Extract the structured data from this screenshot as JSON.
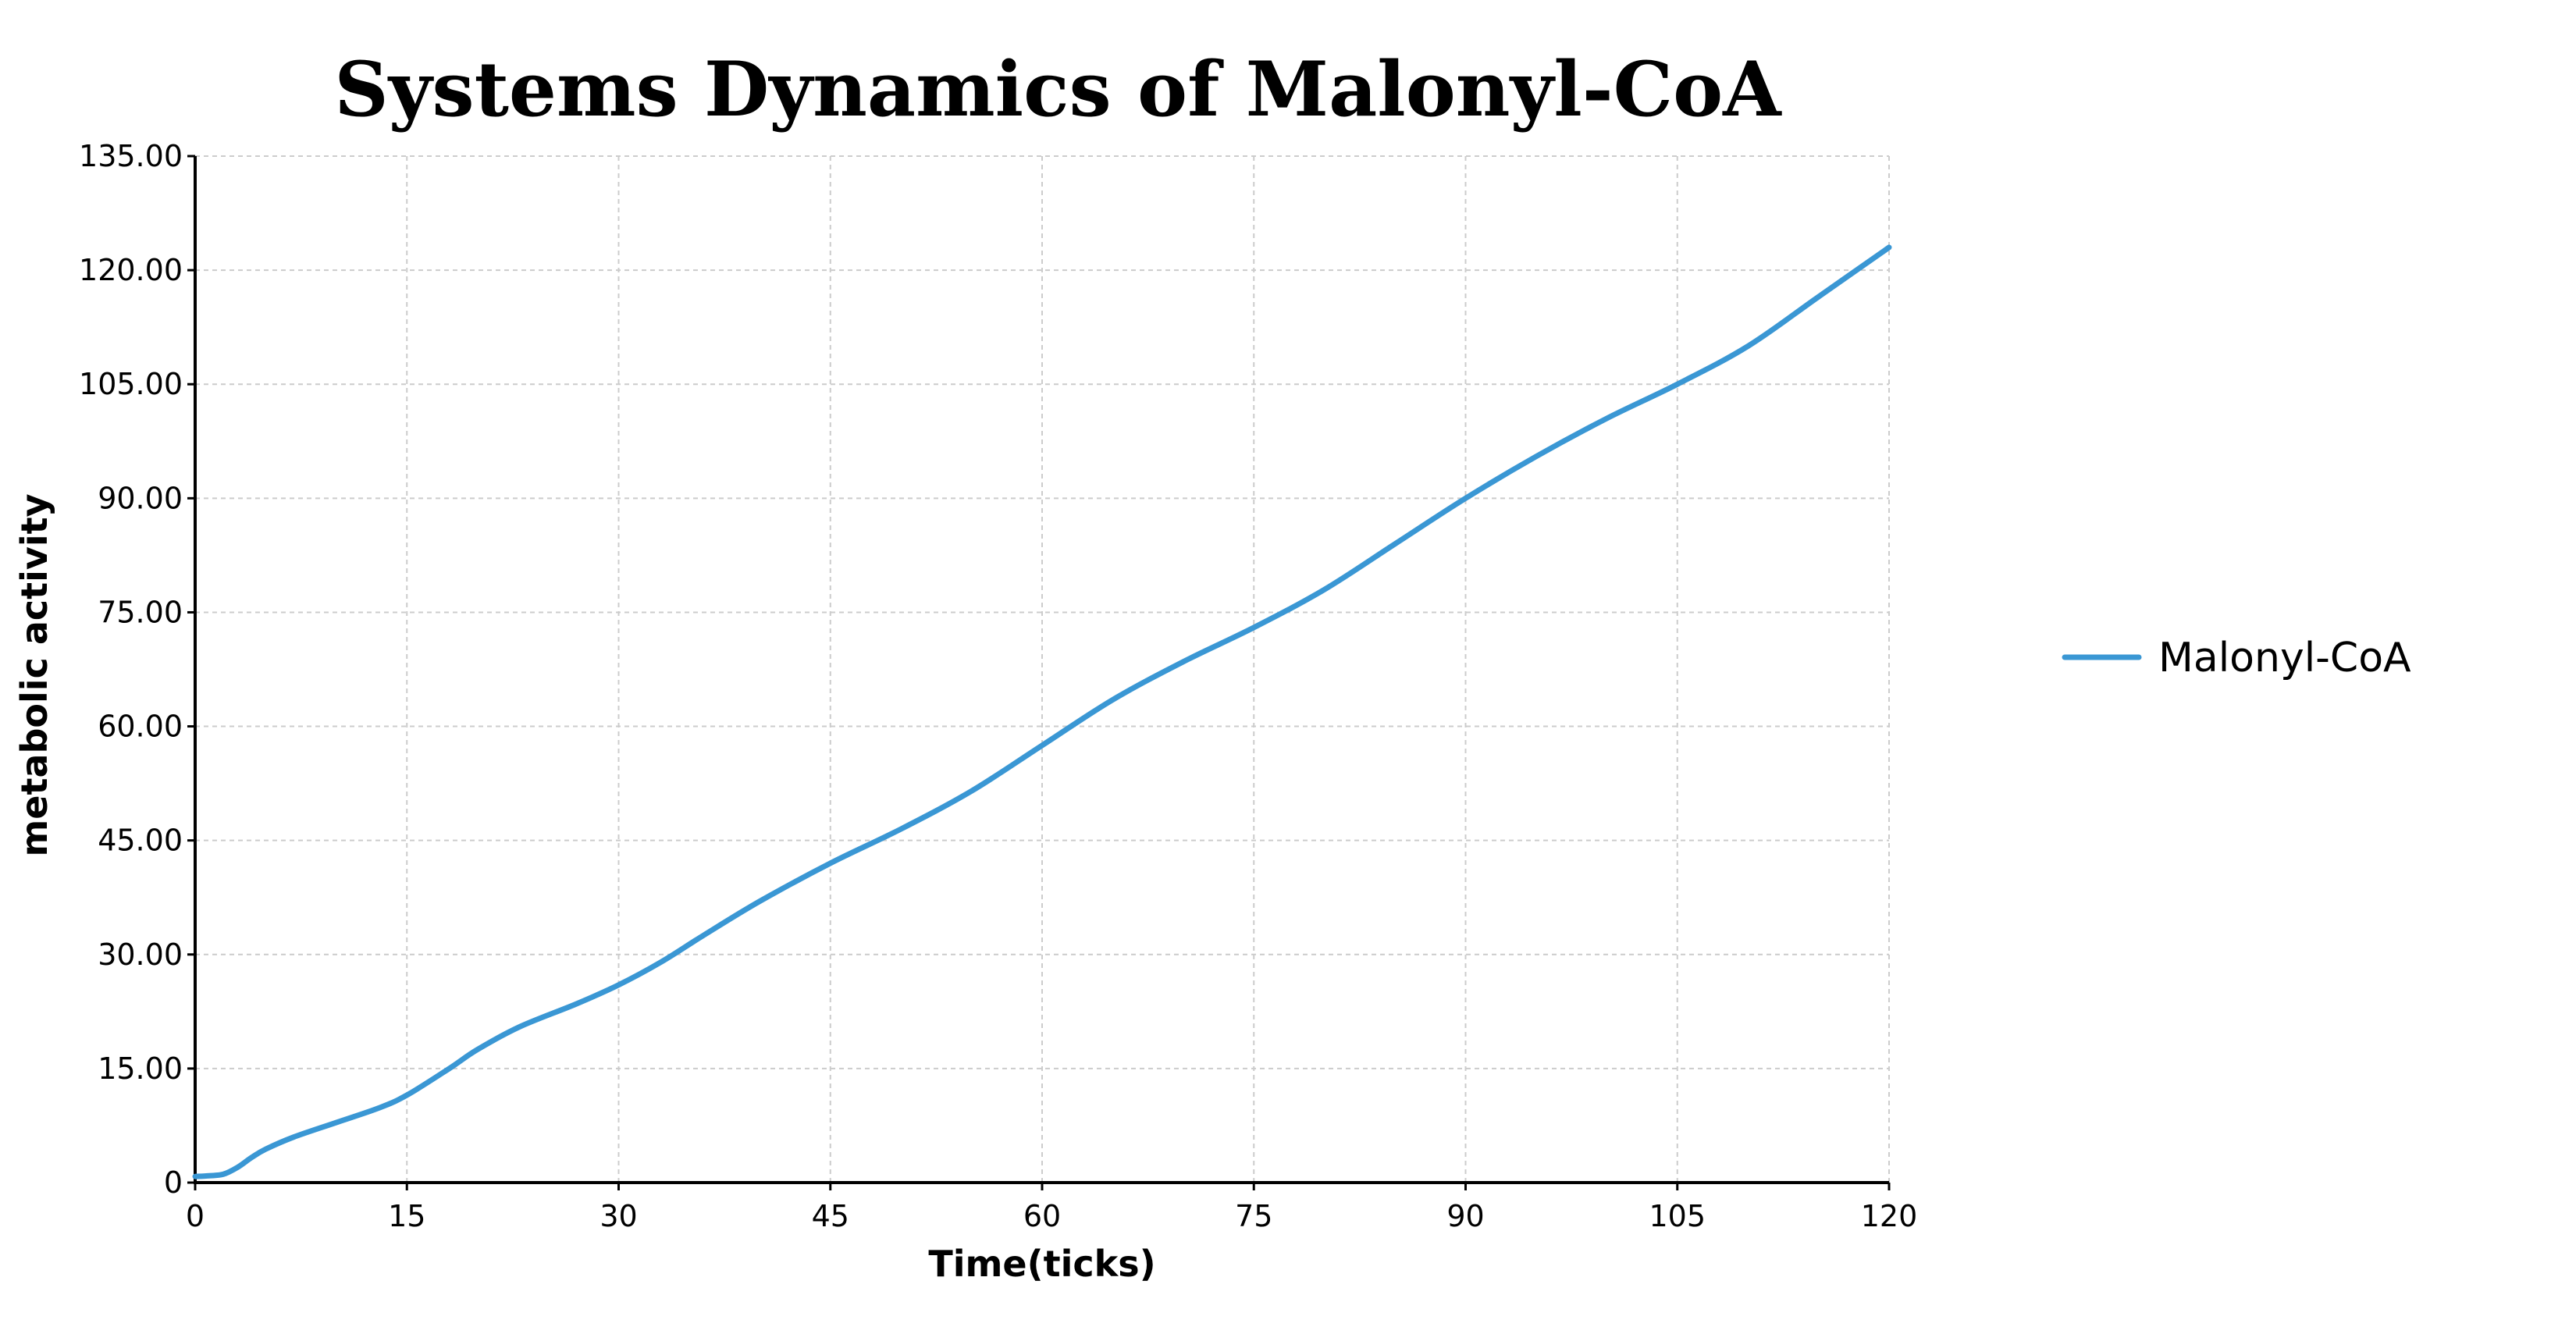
{
  "chart_data": {
    "type": "line",
    "title": "Systems Dynamics of Malonyl-CoA",
    "xlabel": "Time(ticks)",
    "ylabel": "metabolic activity",
    "xlim": [
      0,
      120
    ],
    "ylim": [
      0,
      135
    ],
    "x_ticks": [
      "0",
      "15",
      "30",
      "45",
      "60",
      "75",
      "90",
      "105",
      "120"
    ],
    "y_ticks": [
      "0",
      "15.00",
      "30.00",
      "45.00",
      "60.00",
      "75.00",
      "90.00",
      "105.00",
      "120.00",
      "135.00"
    ],
    "grid": true,
    "legend_position": "right",
    "series": [
      {
        "name": "Malonyl-CoA",
        "color": "#3a97d4",
        "x": [
          0,
          1,
          2,
          3,
          4,
          5,
          7,
          10,
          13,
          15,
          18,
          20,
          23,
          27,
          30,
          33,
          36,
          40,
          45,
          50,
          55,
          60,
          65,
          70,
          75,
          80,
          85,
          90,
          95,
          100,
          105,
          110,
          115,
          120
        ],
        "y": [
          0.8,
          0.9,
          1.1,
          2.0,
          3.3,
          4.4,
          6.0,
          7.9,
          9.8,
          11.5,
          15.0,
          17.5,
          20.5,
          23.5,
          26.0,
          29.0,
          32.5,
          37.0,
          42.0,
          46.5,
          51.5,
          57.5,
          63.5,
          68.5,
          73.0,
          78.0,
          84.0,
          90.0,
          95.5,
          100.5,
          105.0,
          110.0,
          116.5,
          123.0
        ]
      }
    ]
  }
}
